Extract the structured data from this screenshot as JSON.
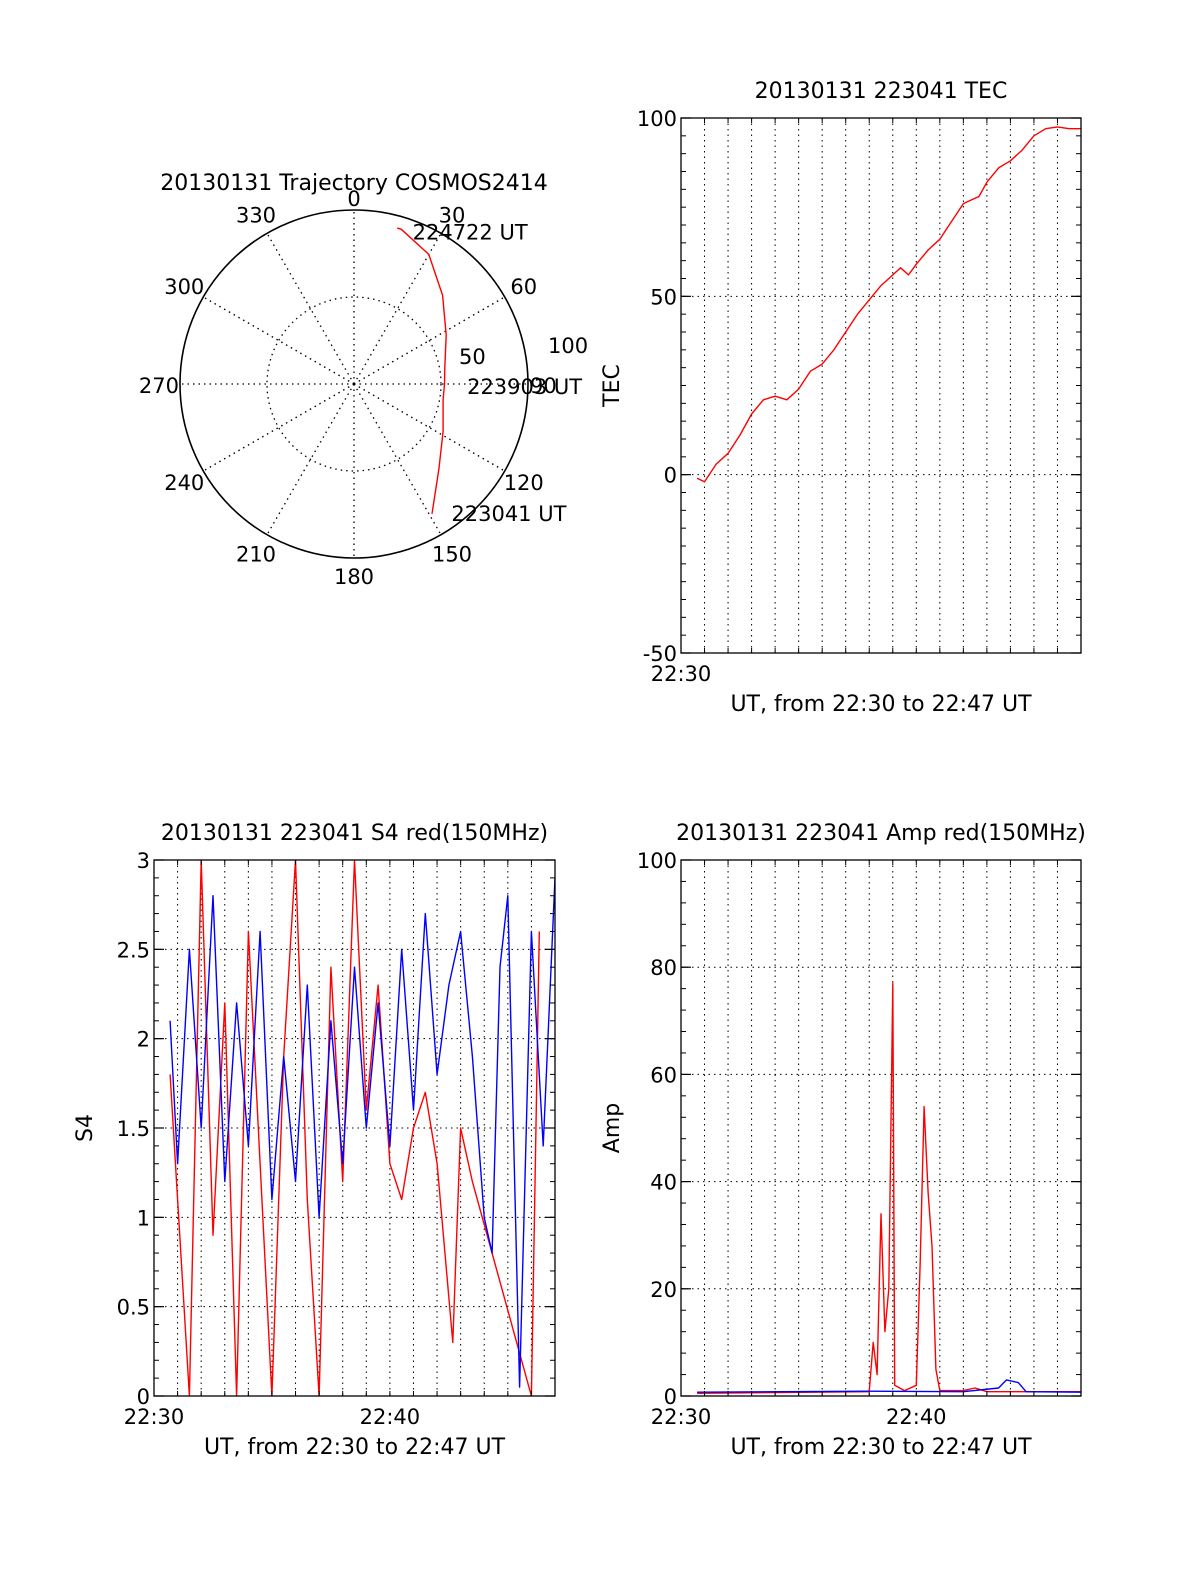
{
  "chart_data": [
    {
      "type": "polar",
      "title": "20130131 Trajectory COSMOS2414",
      "angle_ticks": [
        "0",
        "30",
        "60",
        "90",
        "120",
        "150",
        "180",
        "210",
        "240",
        "270",
        "300",
        "330"
      ],
      "radial_ticks": [
        "50",
        "100"
      ],
      "radial_max": 100,
      "grid": true,
      "series": [
        {
          "color": "#ff0000",
          "points": [
            {
              "angle": 149,
              "r": 87
            },
            {
              "angle": 135,
              "r": 69
            },
            {
              "angle": 118,
              "r": 58
            },
            {
              "angle": 100,
              "r": 52
            },
            {
              "angle": 90,
              "r": 52
            },
            {
              "angle": 80,
              "r": 53
            },
            {
              "angle": 62,
              "r": 60
            },
            {
              "angle": 45,
              "r": 72
            },
            {
              "angle": 30,
              "r": 86
            },
            {
              "angle": 17,
              "r": 93
            },
            {
              "angle": 15.5,
              "r": 93
            }
          ]
        }
      ],
      "annotations": [
        {
          "text": "224722 UT",
          "angle": 21,
          "r": 94
        },
        {
          "text": "223903 UT",
          "angle": 91,
          "r": 65
        },
        {
          "text": "223041 UT",
          "angle": 143,
          "r": 93
        }
      ]
    },
    {
      "type": "line",
      "title": "20130131 223041 TEC",
      "xlabel": "UT, from 22:30 to 22:47 UT",
      "ylabel": "TEC",
      "xlim": [
        "22:30",
        "22:47"
      ],
      "ylim": [
        -50,
        100
      ],
      "xtick_labels": [
        "22:30"
      ],
      "ytick_labels": [
        "-50",
        "0",
        "50",
        "100"
      ],
      "grid": true,
      "series": [
        {
          "color": "#ff0000",
          "points": [
            [
              "22:30:41",
              -1
            ],
            [
              "22:31:00",
              -2
            ],
            [
              "22:31:30",
              3
            ],
            [
              "22:32:00",
              6
            ],
            [
              "22:32:30",
              11
            ],
            [
              "22:33:00",
              17
            ],
            [
              "22:33:30",
              21
            ],
            [
              "22:34:00",
              22
            ],
            [
              "22:34:30",
              21
            ],
            [
              "22:35:00",
              24
            ],
            [
              "22:35:30",
              29
            ],
            [
              "22:36:00",
              31
            ],
            [
              "22:36:30",
              35
            ],
            [
              "22:37:00",
              40
            ],
            [
              "22:37:30",
              45
            ],
            [
              "22:38:00",
              49
            ],
            [
              "22:38:30",
              53
            ],
            [
              "22:39:00",
              56
            ],
            [
              "22:39:20",
              58
            ],
            [
              "22:39:40",
              56
            ],
            [
              "22:40:00",
              59
            ],
            [
              "22:40:30",
              63
            ],
            [
              "22:41:00",
              66
            ],
            [
              "22:41:30",
              71
            ],
            [
              "22:42:00",
              76
            ],
            [
              "22:42:20",
              77
            ],
            [
              "22:42:40",
              78
            ],
            [
              "22:43:00",
              82
            ],
            [
              "22:43:30",
              86
            ],
            [
              "22:44:00",
              88
            ],
            [
              "22:44:30",
              91
            ],
            [
              "22:45:00",
              95
            ],
            [
              "22:45:30",
              97
            ],
            [
              "22:46:00",
              97.5
            ],
            [
              "22:46:30",
              97
            ],
            [
              "22:47:00",
              97
            ]
          ]
        }
      ]
    },
    {
      "type": "line",
      "title": "20130131 223041 S4 red(150MHz)",
      "xlabel": "UT, from 22:30 to 22:47 UT",
      "ylabel": "S4",
      "xlim": [
        "22:30",
        "22:47"
      ],
      "ylim": [
        0,
        3
      ],
      "xtick_labels": [
        "22:30",
        "22:40"
      ],
      "ytick_labels": [
        "0",
        "0.5",
        "1",
        "1.5",
        "2",
        "2.5",
        "3"
      ],
      "grid": true,
      "series": [
        {
          "color": "#ff0000",
          "points": [
            [
              "22:30:41",
              1.8
            ],
            [
              "22:31:30",
              0
            ],
            [
              "22:32:00",
              3
            ],
            [
              "22:32:30",
              0.9
            ],
            [
              "22:33:00",
              2.2
            ],
            [
              "22:33:30",
              0
            ],
            [
              "22:34:00",
              2.6
            ],
            [
              "22:34:30",
              1.3
            ],
            [
              "22:35:00",
              0
            ],
            [
              "22:35:30",
              1.9
            ],
            [
              "22:36:00",
              3
            ],
            [
              "22:36:30",
              1.1
            ],
            [
              "22:37:00",
              0
            ],
            [
              "22:37:30",
              2.4
            ],
            [
              "22:38:00",
              1.2
            ],
            [
              "22:38:30",
              3
            ],
            [
              "22:39:00",
              1.6
            ],
            [
              "22:39:30",
              2.3
            ],
            [
              "22:40:00",
              1.3
            ],
            [
              "22:40:30",
              1.1
            ],
            [
              "22:41:00",
              1.5
            ],
            [
              "22:41:30",
              1.7
            ],
            [
              "22:42:00",
              1.3
            ],
            [
              "22:42:40",
              0.3
            ],
            [
              "22:43:00",
              1.5
            ],
            [
              "22:43:30",
              1.2
            ],
            [
              "22:46:00",
              0
            ],
            [
              "22:46:20",
              2.6
            ]
          ]
        },
        {
          "color": "#0000ff",
          "points": [
            [
              "22:30:41",
              2.1
            ],
            [
              "22:31:00",
              1.3
            ],
            [
              "22:31:30",
              2.5
            ],
            [
              "22:32:00",
              1.5
            ],
            [
              "22:32:30",
              2.8
            ],
            [
              "22:33:00",
              1.2
            ],
            [
              "22:33:30",
              2.2
            ],
            [
              "22:34:00",
              1.4
            ],
            [
              "22:34:30",
              2.6
            ],
            [
              "22:35:00",
              1.1
            ],
            [
              "22:35:30",
              1.9
            ],
            [
              "22:36:00",
              1.2
            ],
            [
              "22:36:30",
              2.3
            ],
            [
              "22:37:00",
              1.0
            ],
            [
              "22:37:30",
              2.1
            ],
            [
              "22:38:00",
              1.3
            ],
            [
              "22:38:30",
              2.4
            ],
            [
              "22:39:00",
              1.5
            ],
            [
              "22:39:30",
              2.2
            ],
            [
              "22:40:00",
              1.4
            ],
            [
              "22:40:30",
              2.5
            ],
            [
              "22:41:00",
              1.6
            ],
            [
              "22:41:30",
              2.7
            ],
            [
              "22:42:00",
              1.8
            ],
            [
              "22:42:30",
              2.3
            ],
            [
              "22:43:00",
              2.6
            ],
            [
              "22:43:30",
              1.9
            ],
            [
              "22:44:00",
              1.0
            ],
            [
              "22:44:20",
              0.8
            ],
            [
              "22:44:40",
              2.4
            ],
            [
              "22:45:00",
              2.8
            ],
            [
              "22:45:30",
              0.05
            ],
            [
              "22:46:00",
              2.6
            ],
            [
              "22:46:30",
              1.4
            ],
            [
              "22:47:00",
              2.9
            ]
          ]
        }
      ]
    },
    {
      "type": "line",
      "title": "20130131 223041 Amp red(150MHz)",
      "xlabel": "UT, from 22:30 to 22:47 UT",
      "ylabel": "Amp",
      "xlim": [
        "22:30",
        "22:47"
      ],
      "ylim": [
        0,
        100
      ],
      "xtick_labels": [
        "22:30",
        "22:40"
      ],
      "ytick_labels": [
        "0",
        "20",
        "40",
        "60",
        "80",
        "100"
      ],
      "grid": true,
      "series": [
        {
          "color": "#ff0000",
          "points": [
            [
              "22:30:41",
              0.5
            ],
            [
              "22:38:00",
              0.8
            ],
            [
              "22:38:10",
              10
            ],
            [
              "22:38:20",
              4
            ],
            [
              "22:38:30",
              34
            ],
            [
              "22:38:40",
              12
            ],
            [
              "22:38:50",
              20
            ],
            [
              "22:39:00",
              77
            ],
            [
              "22:39:05",
              2
            ],
            [
              "22:39:30",
              1
            ],
            [
              "22:40:00",
              2
            ],
            [
              "22:40:10",
              25
            ],
            [
              "22:40:20",
              54
            ],
            [
              "22:40:30",
              38
            ],
            [
              "22:40:40",
              28
            ],
            [
              "22:40:50",
              5
            ],
            [
              "22:41:00",
              1
            ],
            [
              "22:42:00",
              1
            ],
            [
              "22:42:30",
              1.5
            ],
            [
              "22:43:00",
              0.8
            ],
            [
              "22:47:00",
              0.8
            ]
          ]
        },
        {
          "color": "#0000ff",
          "points": [
            [
              "22:30:41",
              0.7
            ],
            [
              "22:38:00",
              0.9
            ],
            [
              "22:42:00",
              0.8
            ],
            [
              "22:43:30",
              1.5
            ],
            [
              "22:43:50",
              3
            ],
            [
              "22:44:20",
              2.5
            ],
            [
              "22:44:40",
              0.8
            ],
            [
              "22:47:00",
              0.7
            ]
          ]
        }
      ]
    }
  ]
}
